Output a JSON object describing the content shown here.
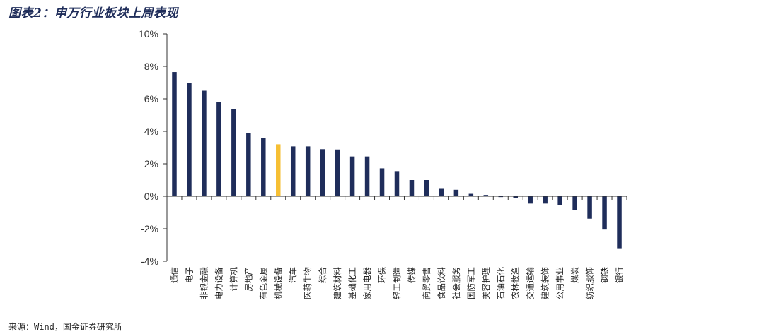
{
  "header": {
    "title": "图表2：申万行业板块上周表现"
  },
  "footer": {
    "source": "来源：Wind，国金证券研究所"
  },
  "colors": {
    "bar": "#1f2d5a",
    "highlight": "#f6bf33",
    "axis": "#333333"
  },
  "chart_data": {
    "type": "bar",
    "title": "",
    "xlabel": "",
    "ylabel": "",
    "ylim": [
      -4,
      10
    ],
    "yticks": [
      -4,
      -2,
      0,
      2,
      4,
      6,
      8,
      10
    ],
    "ytick_labels": [
      "-4%",
      "-2%",
      "0%",
      "2%",
      "4%",
      "6%",
      "8%",
      "10%"
    ],
    "grid": false,
    "highlight_category": "机械设备",
    "categories": [
      "通信",
      "电子",
      "非银金融",
      "电力设备",
      "计算机",
      "房地产",
      "有色金属",
      "机械设备",
      "汽车",
      "医药生物",
      "综合",
      "建筑材料",
      "基础化工",
      "家用电器",
      "环保",
      "轻工制造",
      "传媒",
      "商贸零售",
      "食品饮料",
      "社会服务",
      "国防军工",
      "美容护理",
      "石油石化",
      "农林牧渔",
      "交通运输",
      "建筑装饰",
      "公用事业",
      "煤炭",
      "纺织服饰",
      "钢铁",
      "银行"
    ],
    "values": [
      7.65,
      7.0,
      6.5,
      5.8,
      5.35,
      3.9,
      3.6,
      3.2,
      3.07,
      3.07,
      2.9,
      2.88,
      2.45,
      2.45,
      1.72,
      1.55,
      1.0,
      1.0,
      0.5,
      0.4,
      0.15,
      0.08,
      -0.05,
      -0.12,
      -0.45,
      -0.45,
      -0.55,
      -0.85,
      -1.38,
      -2.05,
      -3.2
    ]
  }
}
